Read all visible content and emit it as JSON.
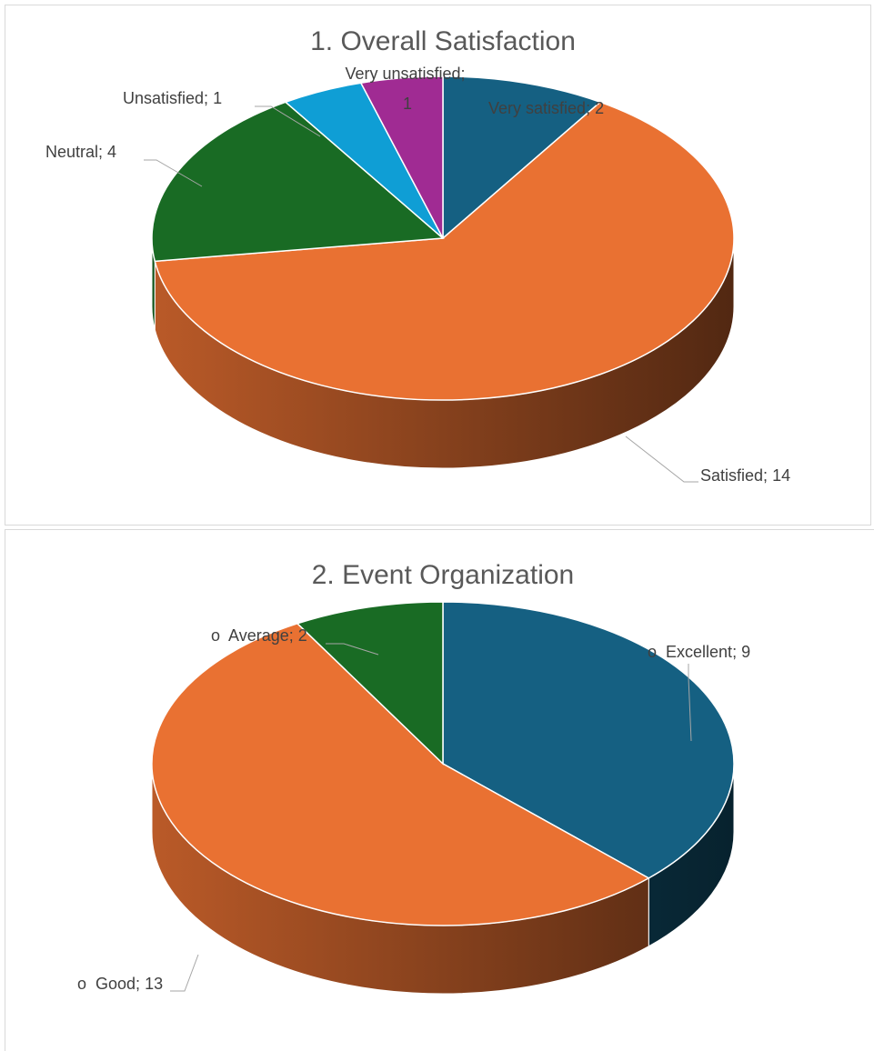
{
  "chart_data": [
    {
      "type": "pie",
      "title": "1. Overall Satisfaction",
      "categories": [
        "Very satisfied",
        "Satisfied",
        "Neutral",
        "Unsatisfied",
        "Very unsatisfied"
      ],
      "values": [
        2,
        14,
        4,
        1,
        1
      ],
      "colors": [
        "#156082",
        "#e97132",
        "#196b24",
        "#0f9ed5",
        "#a02b93"
      ],
      "separator": "; "
    },
    {
      "type": "pie",
      "title": "2. Event Organization",
      "categories": [
        "o  Excellent",
        "o  Good",
        "o  Average"
      ],
      "values": [
        9,
        13,
        2
      ],
      "colors": [
        "#156082",
        "#e97132",
        "#196b24"
      ],
      "separator": "; "
    }
  ]
}
